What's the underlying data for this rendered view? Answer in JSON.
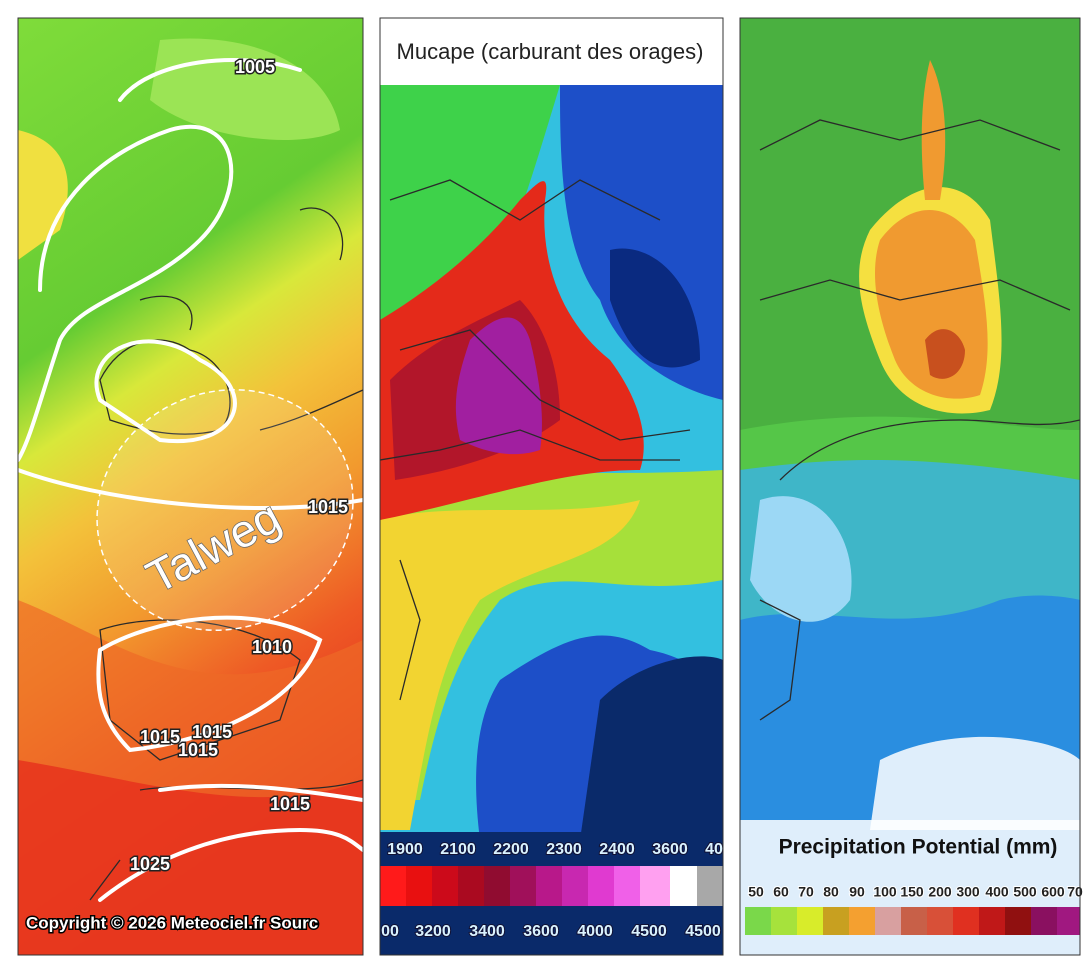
{
  "panels": [
    {
      "isobar_labels": [
        "1005",
        "1015",
        "1010",
        "1015",
        "1015",
        "1015",
        "1015",
        "1025"
      ],
      "annotation": "Talweg",
      "copyright": "Copyright © 2026 Meteociel.fr Sourc"
    },
    {
      "title": "Mucape (carburant des orages)",
      "legend_top": [
        "1900",
        "2100",
        "2200",
        "2300",
        "2400",
        "3600",
        "40"
      ],
      "legend_bottom": [
        "00",
        "3200",
        "3400",
        "3600",
        "4000",
        "4500",
        "4500"
      ]
    },
    {
      "title": "Precipitation Potential (mm)",
      "legend": [
        "50",
        "60",
        "70",
        "80",
        "90",
        "100",
        "150",
        "200",
        "300",
        "400",
        "500",
        "600",
        "70"
      ]
    }
  ]
}
